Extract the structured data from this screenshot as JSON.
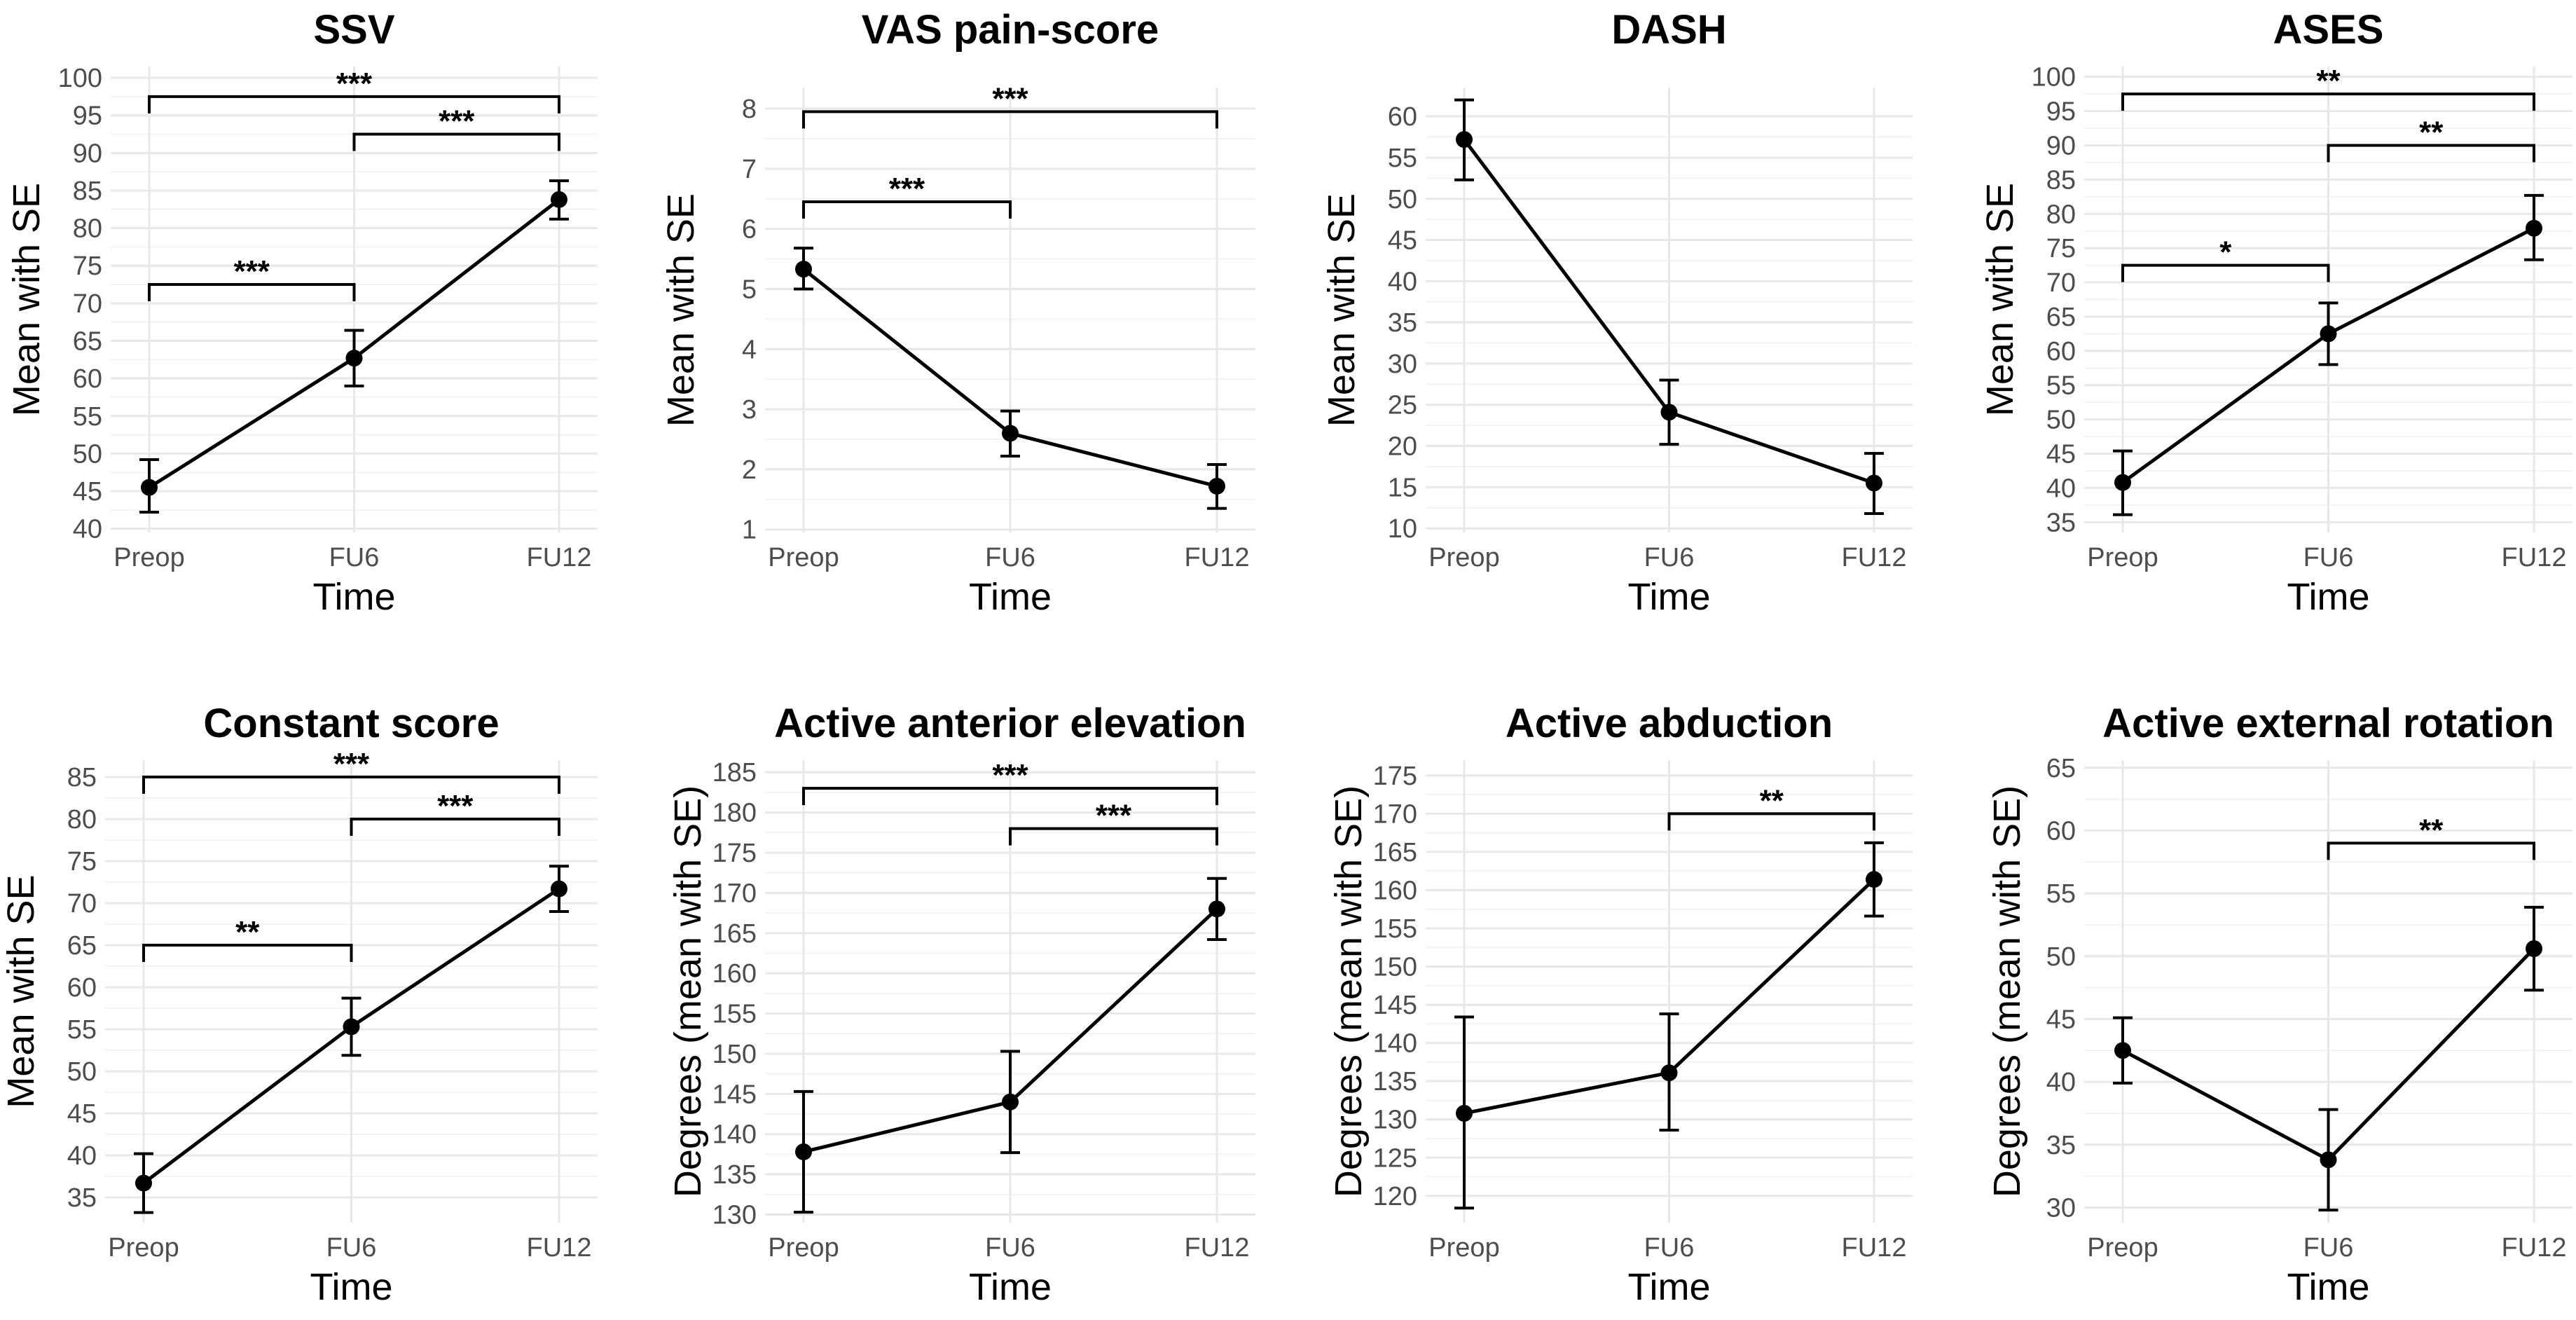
{
  "chart_data": [
    {
      "type": "line",
      "title": "SSV",
      "xlabel": "Time",
      "ylabel": "Mean with SE",
      "categories": [
        "Preop",
        "FU6",
        "FU12"
      ],
      "values": [
        45.5,
        62.7,
        83.8
      ],
      "errors": [
        [
          42.2,
          49.2
        ],
        [
          59.0,
          66.4
        ],
        [
          81.2,
          86.3
        ]
      ],
      "ylim": [
        39.5,
        101.5
      ],
      "yticks": [
        40,
        45,
        50,
        55,
        60,
        65,
        70,
        75,
        80,
        85,
        90,
        95,
        100
      ],
      "brackets": [
        {
          "from": "Preop",
          "to": "FU6",
          "y": 72.5,
          "label": "***"
        },
        {
          "from": "FU6",
          "to": "FU12",
          "y": 92.5,
          "label": "***"
        },
        {
          "from": "Preop",
          "to": "FU12",
          "y": 97.5,
          "label": "***"
        }
      ]
    },
    {
      "type": "line",
      "title": "VAS pain-score",
      "xlabel": "Time",
      "ylabel": "Mean with SE",
      "categories": [
        "Preop",
        "FU6",
        "FU12"
      ],
      "values": [
        5.33,
        2.6,
        1.72
      ],
      "errors": [
        [
          5.0,
          5.68
        ],
        [
          2.22,
          2.97
        ],
        [
          1.35,
          2.08
        ]
      ],
      "ylim": [
        0.95,
        8.35
      ],
      "yticks": [
        1,
        2,
        3,
        4,
        5,
        6,
        7,
        8
      ],
      "brackets": [
        {
          "from": "Preop",
          "to": "FU6",
          "y": 6.45,
          "label": "***"
        },
        {
          "from": "Preop",
          "to": "FU12",
          "y": 7.95,
          "label": "***"
        }
      ]
    },
    {
      "type": "line",
      "title": "DASH",
      "xlabel": "Time",
      "ylabel": "Mean with SE",
      "categories": [
        "Preop",
        "FU6",
        "FU12"
      ],
      "values": [
        57.2,
        24.1,
        15.5
      ],
      "errors": [
        [
          52.3,
          62.0
        ],
        [
          20.2,
          28.0
        ],
        [
          11.8,
          19.1
        ]
      ],
      "ylim": [
        9.5,
        63.5
      ],
      "yticks": [
        10,
        15,
        20,
        25,
        30,
        35,
        40,
        45,
        50,
        55,
        60
      ],
      "brackets": []
    },
    {
      "type": "line",
      "title": "ASES",
      "xlabel": "Time",
      "ylabel": "Mean with SE",
      "categories": [
        "Preop",
        "FU6",
        "FU12"
      ],
      "values": [
        40.8,
        62.5,
        77.9
      ],
      "errors": [
        [
          36.1,
          45.4
        ],
        [
          58.0,
          67.0
        ],
        [
          73.3,
          82.7
        ]
      ],
      "ylim": [
        33.5,
        101.5
      ],
      "yticks": [
        35,
        40,
        45,
        50,
        55,
        60,
        65,
        70,
        75,
        80,
        85,
        90,
        95,
        100
      ],
      "brackets": [
        {
          "from": "Preop",
          "to": "FU6",
          "y": 72.5,
          "label": "*"
        },
        {
          "from": "FU6",
          "to": "FU12",
          "y": 90.0,
          "label": "**"
        },
        {
          "from": "Preop",
          "to": "FU12",
          "y": 97.5,
          "label": "**"
        }
      ]
    },
    {
      "type": "line",
      "title": "Constant score",
      "xlabel": "Time",
      "ylabel": "Mean with SE",
      "categories": [
        "Preop",
        "FU6",
        "FU12"
      ],
      "values": [
        36.7,
        55.3,
        71.7
      ],
      "errors": [
        [
          33.2,
          40.2
        ],
        [
          51.9,
          58.7
        ],
        [
          69.0,
          74.4
        ]
      ],
      "ylim": [
        32.0,
        87.0
      ],
      "yticks": [
        35,
        40,
        45,
        50,
        55,
        60,
        65,
        70,
        75,
        80,
        85
      ],
      "brackets": [
        {
          "from": "Preop",
          "to": "FU6",
          "y": 65.0,
          "label": "**"
        },
        {
          "from": "FU6",
          "to": "FU12",
          "y": 80.0,
          "label": "***"
        },
        {
          "from": "Preop",
          "to": "FU12",
          "y": 85.0,
          "label": "***"
        }
      ]
    },
    {
      "type": "line",
      "title": "Active anterior elevation",
      "xlabel": "Time",
      "ylabel": "Degrees (mean with SE)",
      "categories": [
        "Preop",
        "FU6",
        "FU12"
      ],
      "values": [
        137.8,
        144.0,
        168.0
      ],
      "errors": [
        [
          130.3,
          145.3
        ],
        [
          137.7,
          150.3
        ],
        [
          164.2,
          171.8
        ]
      ],
      "ylim": [
        129.0,
        186.5
      ],
      "yticks": [
        130,
        135,
        140,
        145,
        150,
        155,
        160,
        165,
        170,
        175,
        180,
        185
      ],
      "brackets": [
        {
          "from": "FU6",
          "to": "FU12",
          "y": 178.0,
          "label": "***"
        },
        {
          "from": "Preop",
          "to": "FU12",
          "y": 183.0,
          "label": "***"
        }
      ]
    },
    {
      "type": "line",
      "title": "Active abduction",
      "xlabel": "Time",
      "ylabel": "Degrees (mean with SE)",
      "categories": [
        "Preop",
        "FU6",
        "FU12"
      ],
      "values": [
        130.8,
        136.1,
        161.4
      ],
      "errors": [
        [
          118.4,
          143.4
        ],
        [
          128.6,
          143.8
        ],
        [
          156.6,
          166.2
        ]
      ],
      "ylim": [
        116.5,
        177.0
      ],
      "yticks": [
        120,
        125,
        130,
        135,
        140,
        145,
        150,
        155,
        160,
        165,
        170,
        175
      ],
      "brackets": [
        {
          "from": "FU6",
          "to": "FU12",
          "y": 170.0,
          "label": "**"
        }
      ]
    },
    {
      "type": "line",
      "title": "Active external rotation",
      "xlabel": "Time",
      "ylabel": "Degrees (mean with SE)",
      "categories": [
        "Preop",
        "FU6",
        "FU12"
      ],
      "values": [
        42.5,
        33.8,
        50.6
      ],
      "errors": [
        [
          39.9,
          45.1
        ],
        [
          29.8,
          37.8
        ],
        [
          47.3,
          53.9
        ]
      ],
      "ylim": [
        28.8,
        65.6
      ],
      "yticks": [
        30,
        35,
        40,
        45,
        50,
        55,
        60,
        65
      ],
      "brackets": [
        {
          "from": "FU6",
          "to": "FU12",
          "y": 59.0,
          "label": "**"
        }
      ]
    }
  ]
}
